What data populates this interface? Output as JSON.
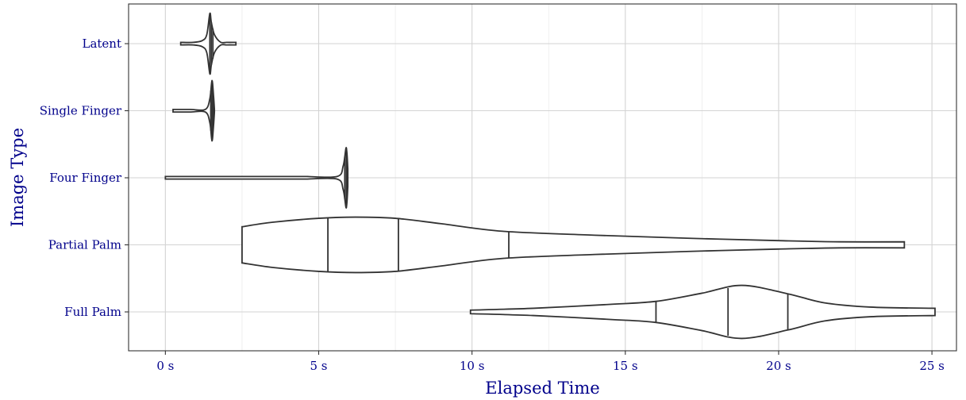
{
  "chart_data": {
    "type": "violin",
    "xlabel": "Elapsed Time",
    "ylabel": "Image Type",
    "xlim": [
      -1.2,
      25.8
    ],
    "x_ticks": [
      0,
      5,
      10,
      15,
      20,
      25
    ],
    "x_tick_labels": [
      "0 s",
      "5 s",
      "10 s",
      "15 s",
      "20 s",
      "25 s"
    ],
    "categories": [
      "Latent",
      "Single Finger",
      "Four Finger",
      "Partial Palm",
      "Full Palm"
    ],
    "grid": true,
    "colors": {
      "outline": "#333333",
      "fill": "#ffffff",
      "text": "#00008b",
      "grid": "#d3d3d3"
    },
    "series": [
      {
        "name": "Latent",
        "min": 0.5,
        "max": 2.3,
        "quantiles": [
          1.45,
          1.5,
          1.55
        ],
        "density": [
          [
            0.5,
            0.01
          ],
          [
            0.9,
            0.03
          ],
          [
            1.2,
            0.1
          ],
          [
            1.35,
            0.3
          ],
          [
            1.45,
            1.0
          ],
          [
            1.5,
            0.7
          ],
          [
            1.6,
            0.3
          ],
          [
            1.8,
            0.05
          ],
          [
            2.0,
            0.03
          ],
          [
            2.3,
            0.01
          ]
        ]
      },
      {
        "name": "Single Finger",
        "min": 0.25,
        "max": 1.6,
        "quantiles": [
          1.48,
          1.52,
          1.56
        ],
        "density": [
          [
            0.25,
            0.01
          ],
          [
            0.8,
            0.01
          ],
          [
            1.3,
            0.03
          ],
          [
            1.45,
            0.4
          ],
          [
            1.52,
            1.0
          ],
          [
            1.57,
            0.5
          ],
          [
            1.6,
            0.02
          ]
        ]
      },
      {
        "name": "Four Finger",
        "min": 0.0,
        "max": 5.95,
        "quantiles": [
          5.85,
          5.9,
          5.93
        ],
        "density": [
          [
            0.0,
            0.01
          ],
          [
            4.3,
            0.01
          ],
          [
            4.45,
            0.04
          ],
          [
            4.6,
            0.01
          ],
          [
            5.6,
            0.02
          ],
          [
            5.8,
            0.4
          ],
          [
            5.9,
            1.0
          ],
          [
            5.95,
            0.3
          ]
        ]
      },
      {
        "name": "Partial Palm",
        "min": 2.5,
        "max": 24.1,
        "quantiles": [
          5.3,
          7.6,
          11.2
        ],
        "density": [
          [
            2.5,
            0.6
          ],
          [
            3.5,
            0.75
          ],
          [
            5.0,
            0.88
          ],
          [
            6.2,
            0.92
          ],
          [
            7.5,
            0.88
          ],
          [
            9.0,
            0.7
          ],
          [
            11.0,
            0.45
          ],
          [
            14.0,
            0.32
          ],
          [
            17.0,
            0.22
          ],
          [
            20.0,
            0.14
          ],
          [
            22.0,
            0.1
          ],
          [
            24.1,
            0.1
          ]
        ]
      },
      {
        "name": "Full Palm",
        "min": 9.95,
        "max": 25.1,
        "quantiles": [
          16.0,
          18.35,
          20.3
        ],
        "density": [
          [
            9.95,
            0.06
          ],
          [
            12.0,
            0.12
          ],
          [
            14.5,
            0.25
          ],
          [
            16.0,
            0.35
          ],
          [
            17.5,
            0.62
          ],
          [
            18.8,
            0.88
          ],
          [
            20.3,
            0.6
          ],
          [
            21.5,
            0.3
          ],
          [
            23.0,
            0.16
          ],
          [
            25.1,
            0.12
          ]
        ]
      }
    ]
  }
}
